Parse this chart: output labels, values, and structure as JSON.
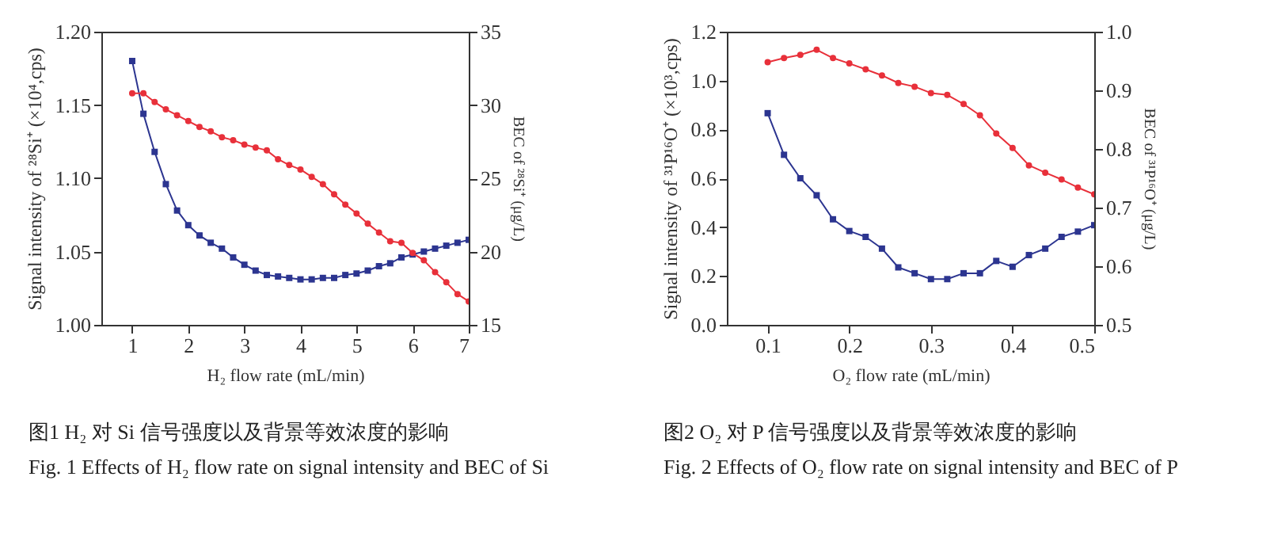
{
  "chart_data": [
    {
      "type": "line",
      "xlabel": "H₂ flow rate (mL/min)",
      "ylabel": "Signal intensity of ²⁸Si⁺ (×10⁴,cps)",
      "y2label": "BEC of ²⁸Si⁺ (μg/L)",
      "annotations": [
        "图1 H₂ 对 Si 信号强度以及背景等效浓度的影响",
        "Fig. 1 Effects of H₂ flow rate on signal intensity and BEC of Si"
      ],
      "x": [
        1,
        1.2,
        1.4,
        1.6,
        1.8,
        2,
        2.2,
        2.4,
        2.6,
        2.8,
        3,
        3.2,
        3.4,
        3.6,
        3.8,
        4,
        4.2,
        4.4,
        4.6,
        4.8,
        5,
        5.2,
        5.4,
        5.6,
        5.8,
        6,
        6.2,
        6.4,
        6.6,
        6.8,
        7
      ],
      "xlim": [
        0.45,
        7
      ],
      "xticks": [
        1,
        2,
        3,
        4,
        5,
        6,
        7
      ],
      "ylim": [
        1,
        1.2
      ],
      "yticks": [
        {
          "value": 1,
          "label": "1.00"
        },
        1.05,
        {
          "value": 1.1,
          "label": "1.10"
        },
        1.15,
        {
          "value": 1.2,
          "label": "1.20"
        }
      ],
      "y2lim": [
        15,
        35
      ],
      "y2ticks": [
        15,
        20,
        25,
        30,
        35
      ],
      "grid": false,
      "legend": false,
      "series": [
        {
          "color": "#e8303a",
          "marker": "circle",
          "values": [
            1.158,
            1.158,
            1.152,
            1.147,
            1.143,
            1.139,
            1.135,
            1.132,
            1.128,
            1.126,
            1.123,
            1.121,
            1.119,
            1.113,
            1.109,
            1.106,
            1.101,
            1.096,
            1.089,
            1.082,
            1.076,
            1.069,
            1.063,
            1.057,
            1.056,
            1.049,
            1.044,
            1.036,
            1.029,
            1.021,
            1.016
          ]
        },
        {
          "color": "#2c3590",
          "marker": "square",
          "axis": "y2",
          "values": [
            33.0,
            29.4,
            26.8,
            24.6,
            22.8,
            21.8,
            21.1,
            20.6,
            20.2,
            19.6,
            19.1,
            18.7,
            18.4,
            18.3,
            18.2,
            18.1,
            18.1,
            18.2,
            18.2,
            18.4,
            18.5,
            18.7,
            19.0,
            19.2,
            19.6,
            19.8,
            20.0,
            20.2,
            20.4,
            20.6,
            20.8
          ]
        }
      ]
    },
    {
      "type": "line",
      "xlabel": "O₂ flow rate (mL/min)",
      "ylabel": "Signal intensity of ³¹P¹⁶O⁺ (×10³,cps)",
      "y2label": "BEC of ³¹P¹⁶O⁺ (μg/L)",
      "annotations": [
        "图2 O₂ 对 P 信号强度以及背景等效浓度的影响",
        "Fig. 2 Effects of O₂ flow rate on signal intensity and BEC of P"
      ],
      "x": [
        0.1,
        0.12,
        0.14,
        0.16,
        0.18,
        0.2,
        0.22,
        0.24,
        0.26,
        0.28,
        0.3,
        0.32,
        0.34,
        0.36,
        0.38,
        0.4,
        0.42,
        0.44,
        0.46,
        0.48,
        0.5
      ],
      "xlim": [
        0.05,
        0.5
      ],
      "xticks": [
        0.1,
        0.2,
        0.3,
        0.4,
        0.5
      ],
      "ylim": [
        0,
        1.2
      ],
      "yticks": [
        {
          "value": 0,
          "label": "0.0"
        },
        0.2,
        0.4,
        0.6,
        0.8,
        {
          "value": 1,
          "label": "1.0"
        },
        1.2
      ],
      "y2lim": [
        0.5,
        1
      ],
      "y2ticks": [
        0.5,
        0.6,
        0.7,
        0.8,
        0.9,
        {
          "value": 1,
          "label": "1.0"
        }
      ],
      "grid": false,
      "legend": false,
      "series": [
        {
          "color": "#e8303a",
          "marker": "circle",
          "values": [
            1.075,
            1.092,
            1.105,
            1.126,
            1.092,
            1.07,
            1.046,
            1.021,
            0.99,
            0.975,
            0.949,
            0.941,
            0.904,
            0.858,
            0.783,
            0.724,
            0.653,
            0.623,
            0.595,
            0.562,
            0.534
          ]
        },
        {
          "color": "#2c3590",
          "marker": "square",
          "axis": "y2",
          "values": [
            0.861,
            0.79,
            0.75,
            0.721,
            0.68,
            0.66,
            0.65,
            0.63,
            0.598,
            0.588,
            0.578,
            0.578,
            0.588,
            0.588,
            0.609,
            0.599,
            0.619,
            0.63,
            0.65,
            0.659,
            0.67
          ]
        }
      ]
    }
  ]
}
